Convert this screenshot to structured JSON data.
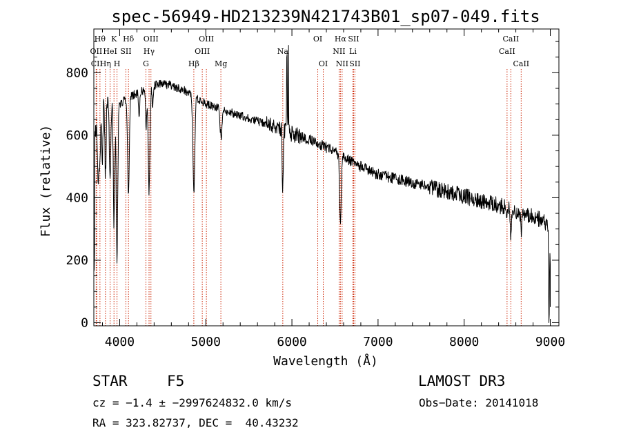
{
  "chart_data": {
    "type": "line",
    "title": "spec-56949-HD213239N421743B01_sp07-049.fits",
    "xlabel": "Wavelength (Å)",
    "ylabel": "Flux (relative)",
    "xlim": [
      3700,
      9100
    ],
    "ylim": [
      -10,
      940
    ],
    "x_ticks": [
      4000,
      5000,
      6000,
      7000,
      8000,
      9000
    ],
    "x_tick_labels": [
      "4000",
      "5000",
      "6000",
      "7000",
      "8000",
      "9000"
    ],
    "y_ticks": [
      0,
      200,
      400,
      600,
      800
    ],
    "y_tick_labels": [
      "0",
      "200",
      "400",
      "600",
      "800"
    ],
    "grid": false,
    "series": [
      {
        "name": "flux",
        "continuum_knots": [
          [
            3700,
            560
          ],
          [
            3740,
            660
          ],
          [
            3800,
            700
          ],
          [
            3900,
            690
          ],
          [
            4000,
            700
          ],
          [
            4100,
            720
          ],
          [
            4200,
            735
          ],
          [
            4300,
            745
          ],
          [
            4450,
            765
          ],
          [
            4600,
            760
          ],
          [
            4800,
            738
          ],
          [
            5000,
            700
          ],
          [
            5200,
            680
          ],
          [
            5500,
            655
          ],
          [
            5800,
            625
          ],
          [
            6000,
            605
          ],
          [
            6300,
            575
          ],
          [
            6600,
            530
          ],
          [
            6800,
            500
          ],
          [
            7000,
            475
          ],
          [
            7500,
            440
          ],
          [
            8000,
            405
          ],
          [
            8500,
            368
          ],
          [
            8900,
            330
          ],
          [
            8980,
            310
          ],
          [
            9000,
            200
          ]
        ],
        "absorption_features": [
          {
            "center": 3750,
            "depth": 220,
            "width": 8
          },
          {
            "center": 3770,
            "depth": 180,
            "width": 6
          },
          {
            "center": 3798,
            "depth": 200,
            "width": 6
          },
          {
            "center": 3835,
            "depth": 220,
            "width": 7
          },
          {
            "center": 3889,
            "depth": 240,
            "width": 8
          },
          {
            "center": 3934,
            "depth": 370,
            "width": 8
          },
          {
            "center": 3969,
            "depth": 500,
            "width": 9
          },
          {
            "center": 4102,
            "depth": 300,
            "width": 10
          },
          {
            "center": 4226,
            "depth": 80,
            "width": 6
          },
          {
            "center": 4307,
            "depth": 120,
            "width": 7
          },
          {
            "center": 4341,
            "depth": 330,
            "width": 10
          },
          {
            "center": 4383,
            "depth": 60,
            "width": 6
          },
          {
            "center": 4861,
            "depth": 310,
            "width": 11
          },
          {
            "center": 5167,
            "depth": 55,
            "width": 8
          },
          {
            "center": 5183,
            "depth": 75,
            "width": 8
          },
          {
            "center": 5890,
            "depth": 120,
            "width": 5
          },
          {
            "center": 5896,
            "depth": 120,
            "width": 5
          },
          {
            "center": 6563,
            "depth": 230,
            "width": 9
          },
          {
            "center": 8498,
            "depth": 40,
            "width": 6
          },
          {
            "center": 8542,
            "depth": 90,
            "width": 7
          },
          {
            "center": 8662,
            "depth": 60,
            "width": 7
          },
          {
            "center": 8985,
            "depth": 330,
            "width": 4
          }
        ],
        "emission_features": [
          {
            "center": 5942,
            "height": 330,
            "width": 3
          },
          {
            "center": 5960,
            "height": 300,
            "width": 2
          }
        ]
      }
    ],
    "line_markers": [
      {
        "wavelength": 3727,
        "label": "OII",
        "row": 1
      },
      {
        "wavelength": 3734,
        "label": "CII",
        "row": 2
      },
      {
        "wavelength": 3771,
        "label": "Hθ",
        "row": 0
      },
      {
        "wavelength": 3835,
        "label": "Hη",
        "row": 2
      },
      {
        "wavelength": 3889,
        "label": "HeI",
        "row": 1
      },
      {
        "wavelength": 3934,
        "label": "K",
        "row": 0
      },
      {
        "wavelength": 3969,
        "label": "H",
        "row": 2
      },
      {
        "wavelength": 4072,
        "label": "SII",
        "row": 1
      },
      {
        "wavelength": 4102,
        "label": "Hδ",
        "row": 0
      },
      {
        "wavelength": 4305,
        "label": "G",
        "row": 2
      },
      {
        "wavelength": 4341,
        "label": "Hγ",
        "row": 1
      },
      {
        "wavelength": 4363,
        "label": "OIII",
        "row": 0
      },
      {
        "wavelength": 4861,
        "label": "Hβ",
        "row": 2
      },
      {
        "wavelength": 4959,
        "label": "OIII",
        "row": 1
      },
      {
        "wavelength": 5007,
        "label": "OIII",
        "row": 0
      },
      {
        "wavelength": 5175,
        "label": "Mg",
        "row": 2
      },
      {
        "wavelength": 5894,
        "label": "Na",
        "row": 1
      },
      {
        "wavelength": 6300,
        "label": "OI",
        "row": 0
      },
      {
        "wavelength": 6364,
        "label": "OI",
        "row": 2
      },
      {
        "wavelength": 6548,
        "label": "NII",
        "row": 1
      },
      {
        "wavelength": 6563,
        "label": "Hα",
        "row": 0
      },
      {
        "wavelength": 6583,
        "label": "NII",
        "row": 2
      },
      {
        "wavelength": 6708,
        "label": "Li",
        "row": 1
      },
      {
        "wavelength": 6716,
        "label": "SII",
        "row": 0
      },
      {
        "wavelength": 6731,
        "label": "SII",
        "row": 2
      },
      {
        "wavelength": 8498,
        "label": "CaII",
        "row": 1
      },
      {
        "wavelength": 8542,
        "label": "CaII",
        "row": 0
      },
      {
        "wavelength": 8662,
        "label": "CaII",
        "row": 2
      }
    ],
    "colors": {
      "spectrum": "#000000",
      "markers": "#cc2200",
      "axes": "#000000",
      "background": "#ffffff"
    }
  },
  "info": {
    "object_class": "STAR",
    "subclass": "F5",
    "survey": "LAMOST DR3",
    "cz_line": "cz = −1.4 ± −2997624832.0 km/s",
    "obs_date": "Obs−Date: 20141018",
    "coords": "RA = 323.82737, DEC =  40.43232"
  }
}
